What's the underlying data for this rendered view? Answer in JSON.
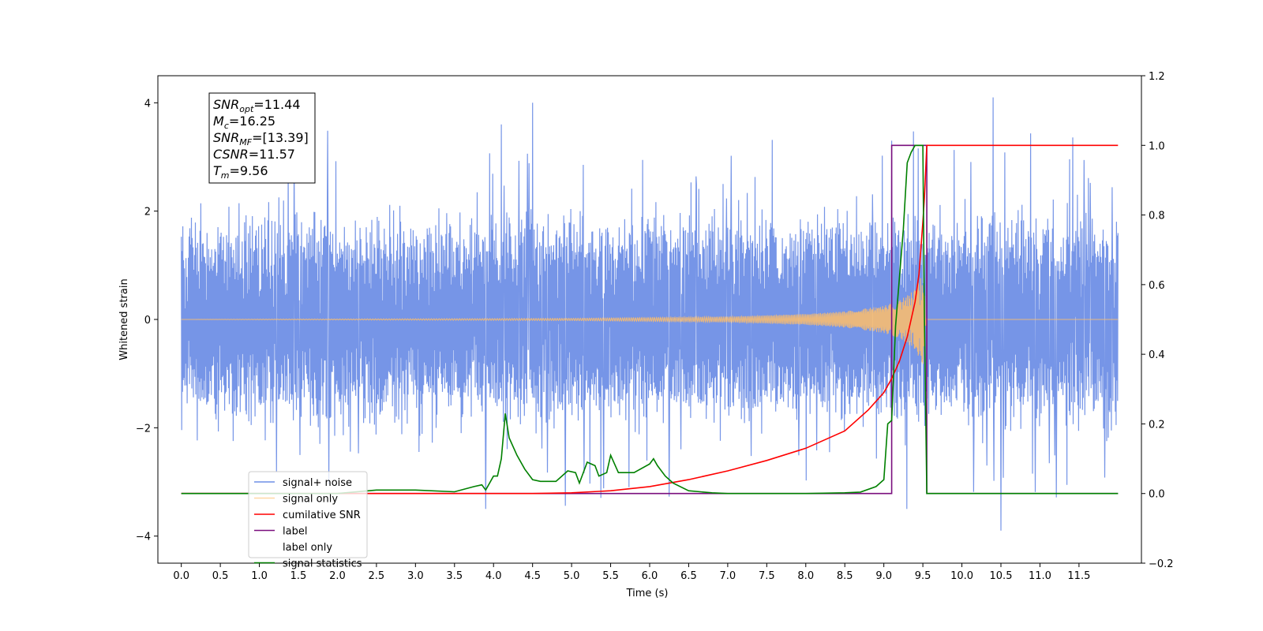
{
  "chart_data": {
    "type": "line",
    "xlabel": "Time (s)",
    "ylabel_left": "Whitened strain",
    "ylabel_right": "",
    "x_ticks": [
      "0.0",
      "0.5",
      "1.0",
      "1.5",
      "2.0",
      "2.5",
      "3.0",
      "3.5",
      "4.0",
      "4.5",
      "5.0",
      "5.5",
      "6.0",
      "6.5",
      "7.0",
      "7.5",
      "8.0",
      "8.5",
      "9.0",
      "9.5",
      "10.0",
      "10.5",
      "11.0",
      "11.5"
    ],
    "y_left_ticks": [
      "4",
      "2",
      "0",
      "−2",
      "−4"
    ],
    "y_right_ticks": [
      "1.2",
      "1.0",
      "0.8",
      "0.6",
      "0.4",
      "0.2",
      "0.0",
      "−0.2"
    ],
    "xlim": [
      -0.3,
      12.3
    ],
    "ylim_left": [
      -4.5,
      4.5
    ],
    "ylim_right": [
      -0.2,
      1.2
    ],
    "legend_position": "lower-left",
    "annotation": {
      "lines": [
        {
          "base": "SNR",
          "sub": "opt",
          "text": "=11.44"
        },
        {
          "base": "M",
          "sub": "c",
          "text": "=16.25"
        },
        {
          "base": "SNR",
          "sub": "MF",
          "text": "=[13.39]"
        },
        {
          "base": "CSNR",
          "sub": "",
          "text": "=11.57"
        },
        {
          "base": "T",
          "sub": "m",
          "text": "=9.56"
        }
      ]
    },
    "series": [
      {
        "name": "signal+ noise",
        "axis": "left",
        "color": "#6f8fe6",
        "description_values": {
          "x_range": [
            0.0,
            12.0
          ],
          "typical_amplitude": 1.6,
          "peak_values": [
            {
              "x": 4.5,
              "y": 4.0
            },
            {
              "x": 4.1,
              "y": 3.6
            },
            {
              "x": 10.4,
              "y": 4.1
            },
            {
              "x": 10.5,
              "y": -3.9
            },
            {
              "x": 3.9,
              "y": -3.5
            },
            {
              "x": 9.1,
              "y": 3.3
            }
          ]
        }
      },
      {
        "name": "signal only",
        "axis": "left",
        "color": "#ffbe6a",
        "envelope": {
          "x": [
            0.0,
            5.0,
            7.0,
            8.0,
            8.5,
            9.0,
            9.2,
            9.4,
            9.5,
            9.55,
            12.0
          ],
          "amp": [
            0.0,
            0.02,
            0.05,
            0.1,
            0.15,
            0.25,
            0.35,
            0.55,
            0.85,
            0.0,
            0.0
          ]
        }
      },
      {
        "name": "cumilative SNR",
        "axis": "right",
        "color": "#ff0000",
        "x": [
          0.0,
          2.0,
          4.0,
          4.5,
          5.0,
          5.5,
          6.0,
          6.5,
          7.0,
          7.5,
          8.0,
          8.5,
          8.8,
          9.0,
          9.1,
          9.2,
          9.3,
          9.4,
          9.45,
          9.5,
          9.52,
          9.55,
          12.0
        ],
        "values": [
          0.0,
          0.0,
          0.0,
          0.0,
          0.002,
          0.008,
          0.02,
          0.04,
          0.065,
          0.095,
          0.13,
          0.18,
          0.24,
          0.29,
          0.33,
          0.38,
          0.45,
          0.55,
          0.63,
          0.78,
          0.85,
          1.0,
          1.0
        ]
      },
      {
        "name": "label",
        "axis": "right",
        "color": "#7a0f7e",
        "x": [
          0.0,
          9.1,
          9.1,
          9.55,
          9.55,
          12.0
        ],
        "values": [
          0.0,
          0.0,
          1.0,
          1.0,
          0.0,
          0.0
        ]
      },
      {
        "name": "label only",
        "axis": "right",
        "color": "#ffffff",
        "x": [],
        "values": []
      },
      {
        "name": "signal statistics",
        "axis": "right",
        "color": "#008000",
        "x": [
          0.0,
          2.0,
          2.5,
          3.0,
          3.5,
          3.75,
          3.85,
          3.9,
          4.0,
          4.05,
          4.1,
          4.15,
          4.2,
          4.3,
          4.4,
          4.5,
          4.6,
          4.8,
          4.95,
          5.05,
          5.1,
          5.2,
          5.3,
          5.35,
          5.45,
          5.5,
          5.6,
          5.8,
          6.0,
          6.05,
          6.1,
          6.2,
          6.3,
          6.5,
          6.8,
          7.0,
          7.5,
          8.0,
          8.5,
          8.7,
          8.9,
          9.0,
          9.05,
          9.1,
          9.15,
          9.2,
          9.25,
          9.3,
          9.35,
          9.4,
          9.45,
          9.5,
          9.52,
          9.55,
          9.6,
          12.0
        ],
        "values": [
          0.0,
          0.0,
          0.01,
          0.01,
          0.005,
          0.02,
          0.025,
          0.01,
          0.05,
          0.05,
          0.1,
          0.23,
          0.16,
          0.11,
          0.07,
          0.04,
          0.035,
          0.035,
          0.065,
          0.06,
          0.03,
          0.09,
          0.08,
          0.05,
          0.06,
          0.11,
          0.06,
          0.06,
          0.085,
          0.1,
          0.08,
          0.05,
          0.03,
          0.008,
          0.002,
          0.0,
          0.0,
          0.0,
          0.002,
          0.004,
          0.02,
          0.04,
          0.2,
          0.21,
          0.48,
          0.62,
          0.76,
          0.95,
          0.98,
          1.0,
          1.0,
          1.0,
          0.5,
          0.0,
          0.0,
          0.0
        ]
      }
    ]
  }
}
